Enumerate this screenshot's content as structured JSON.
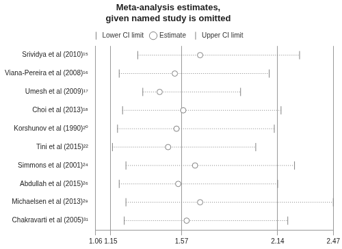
{
  "chart_data": {
    "type": "forest",
    "title": [
      "Meta-analysis estimates,",
      "given named study is omitted"
    ],
    "categories": [
      "Srividya et al (2010)¹⁵",
      "Viana-Pereira et al (2008)¹⁶",
      "Umesh et al (2009)¹⁷",
      "Choi et al (2013)¹⁸",
      "Korshunov et al (1990)²⁰",
      "Tini et al (2015)²²",
      "Simmons et al (2001)²⁴",
      "Abdullah et al (2015)²⁶",
      "Michaelsen et al (2013)²⁹",
      "Chakravarti et al (2005)³¹"
    ],
    "series": [
      {
        "name": "Lower CI limit",
        "color": "#808080",
        "marker": "line",
        "values": [
          1.31,
          1.2,
          1.34,
          1.22,
          1.19,
          1.16,
          1.24,
          1.2,
          1.24,
          1.23
        ]
      },
      {
        "name": "Estimate",
        "color": "#808080",
        "marker": "circle",
        "values": [
          1.68,
          1.53,
          1.44,
          1.58,
          1.54,
          1.49,
          1.65,
          1.55,
          1.68,
          1.6
        ]
      },
      {
        "name": "Upper CI limit",
        "color": "#808080",
        "marker": "line",
        "values": [
          2.27,
          2.09,
          1.92,
          2.16,
          2.12,
          2.01,
          2.24,
          2.14,
          2.47,
          2.2
        ]
      }
    ],
    "line_style": "dotted",
    "xlim": [
      1.06,
      2.47
    ],
    "xticks": [
      1.06,
      1.15,
      1.57,
      2.14,
      2.47
    ],
    "grid": true,
    "legend": "top"
  }
}
